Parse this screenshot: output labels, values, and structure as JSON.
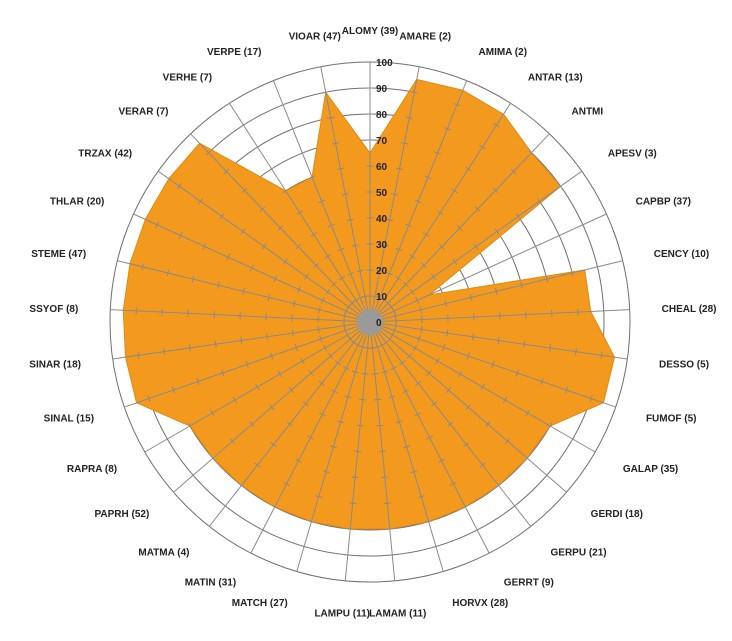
{
  "chart_data": {
    "type": "radar",
    "title": "",
    "rlim": [
      0,
      100
    ],
    "ticks": [
      0,
      10,
      20,
      30,
      40,
      50,
      60,
      70,
      80,
      90,
      100
    ],
    "grid": true,
    "fill_color": "#f39a1e",
    "categories": [
      "ALOMY (39)",
      "AMARE (2)",
      "AMIMA (2)",
      "ANTAR (13)",
      "ANTMI",
      "APESV (3)",
      "CAPBP (37)",
      "CENCY (10)",
      "CHEAL (28)",
      "DESSO (5)",
      "FUMOF (5)",
      "GALAP (35)",
      "GERDI (18)",
      "GERPU (21)",
      "GERRT (9)",
      "HORVX (28)",
      "LAMAM (11)",
      "LAMPU (11)",
      "MATCH (27)",
      "MATIN (31)",
      "MATMA (4)",
      "PAPRH (52)",
      "RAPRA (8)",
      "SINAL (15)",
      "SINAR (18)",
      "SSYOF (8)",
      "STEME (47)",
      "THLAR (20)",
      "TRZAX (42)",
      "VERAR (7)",
      "VERHE (7)",
      "VERPE (17)",
      "VIOAR (47)"
    ],
    "values": [
      65,
      95,
      96,
      95,
      90,
      90,
      25,
      85,
      85,
      95,
      95,
      80,
      80,
      80,
      80,
      80,
      80,
      80,
      80,
      80,
      80,
      80,
      80,
      95,
      95,
      95,
      95,
      95,
      95,
      95,
      60,
      60,
      90
    ]
  }
}
